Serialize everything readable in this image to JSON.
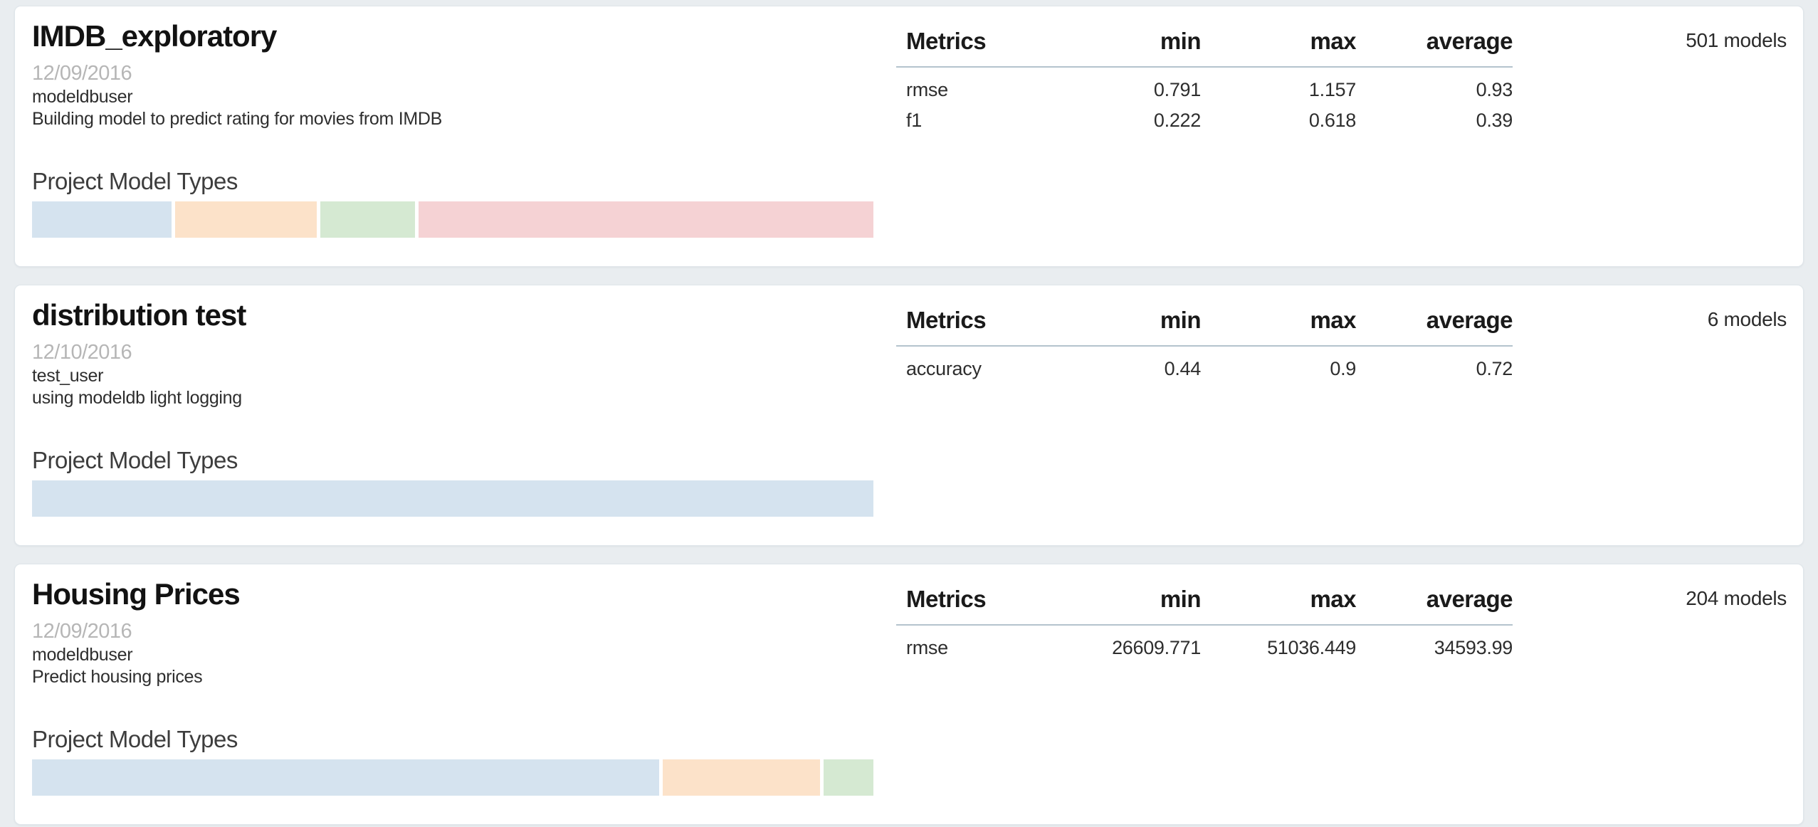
{
  "labels": {
    "model_types_heading": "Project Model Types",
    "columns": {
      "metric": "Metrics",
      "min": "min",
      "max": "max",
      "average": "average"
    }
  },
  "colors": {
    "page_background": "#e9edf0",
    "card_background": "#ffffff",
    "card_border": "#dfe5ea",
    "header_rule": "#b4c3cd",
    "type_blue": "#d5e3ef",
    "type_orange": "#fce2c9",
    "type_green": "#d5e9d2",
    "type_red": "#f5d2d4"
  },
  "cards": [
    {
      "title": "IMDB_exploratory",
      "date": "12/09/2016",
      "owner": "modeldbuser",
      "description": "Building model to predict rating for movies from IMDB",
      "models_count": "501 models",
      "metrics": [
        {
          "name": "rmse",
          "min": "0.791",
          "max": "1.157",
          "average": "0.93"
        },
        {
          "name": "f1",
          "min": "0.222",
          "max": "0.618",
          "average": "0.39"
        }
      ],
      "model_types": [
        {
          "color": "#d5e3ef",
          "percent": 16.6
        },
        {
          "color": "#fce2c9",
          "percent": 16.8
        },
        {
          "color": "#d5e9d2",
          "percent": 11.3
        },
        {
          "color": "#f5d2d4",
          "percent": 54.1
        }
      ]
    },
    {
      "title": "distribution test",
      "date": "12/10/2016",
      "owner": "test_user",
      "description": "using modeldb light logging",
      "models_count": "6 models",
      "metrics": [
        {
          "name": "accuracy",
          "min": "0.44",
          "max": "0.9",
          "average": "0.72"
        }
      ],
      "model_types": [
        {
          "color": "#d5e3ef",
          "percent": 100
        }
      ]
    },
    {
      "title": "Housing Prices",
      "date": "12/09/2016",
      "owner": "modeldbuser",
      "description": "Predict housing prices",
      "models_count": "204 models",
      "metrics": [
        {
          "name": "rmse",
          "min": "26609.771",
          "max": "51036.449",
          "average": "34593.99"
        }
      ],
      "model_types": [
        {
          "color": "#d5e3ef",
          "percent": 74.7
        },
        {
          "color": "#fce2c9",
          "percent": 18.8
        },
        {
          "color": "#d5e9d2",
          "percent": 5.9
        }
      ]
    }
  ]
}
